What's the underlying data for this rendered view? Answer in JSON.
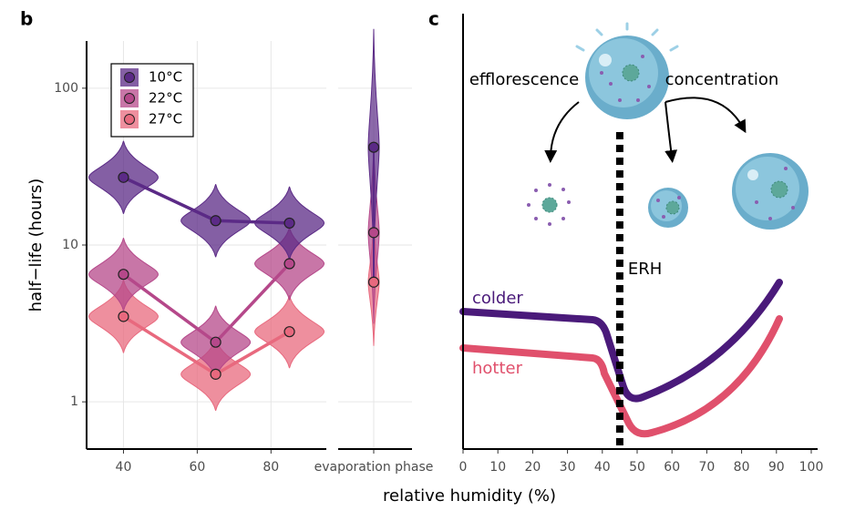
{
  "chart_data": [
    {
      "type": "line",
      "label": "b",
      "ylabel": "half−life (hours)",
      "log_y": true,
      "grid": true,
      "x": [
        40,
        65,
        85
      ],
      "xlim": [
        30,
        95
      ],
      "xticks": [
        40,
        60,
        80
      ],
      "ylim": [
        0.5,
        200
      ],
      "yticks": [
        1,
        10,
        100
      ],
      "legend": "top-left",
      "evaporation_category": "evaporation phase",
      "series": [
        {
          "name": "27°C",
          "color": "#e8697e",
          "values": [
            3.5,
            1.5,
            2.8
          ],
          "evaporation_value": 5.8
        },
        {
          "name": "22°C",
          "color": "#b5488a",
          "values": [
            6.5,
            2.4,
            7.6
          ],
          "evaporation_value": 12
        },
        {
          "name": "10°C",
          "color": "#5b2a86",
          "values": [
            27,
            14.3,
            13.8
          ],
          "evaporation_value": 42
        }
      ]
    },
    {
      "type": "schematic",
      "label": "c",
      "xlabel": "relative humidity (%)",
      "xlim": [
        0,
        102
      ],
      "xticks": [
        0,
        10,
        20,
        30,
        40,
        50,
        60,
        70,
        80,
        90,
        100
      ],
      "erh": 45,
      "erh_label": "ERH",
      "annotations": [
        "efflorescence",
        "concentration",
        "colder",
        "hotter"
      ]
    }
  ]
}
